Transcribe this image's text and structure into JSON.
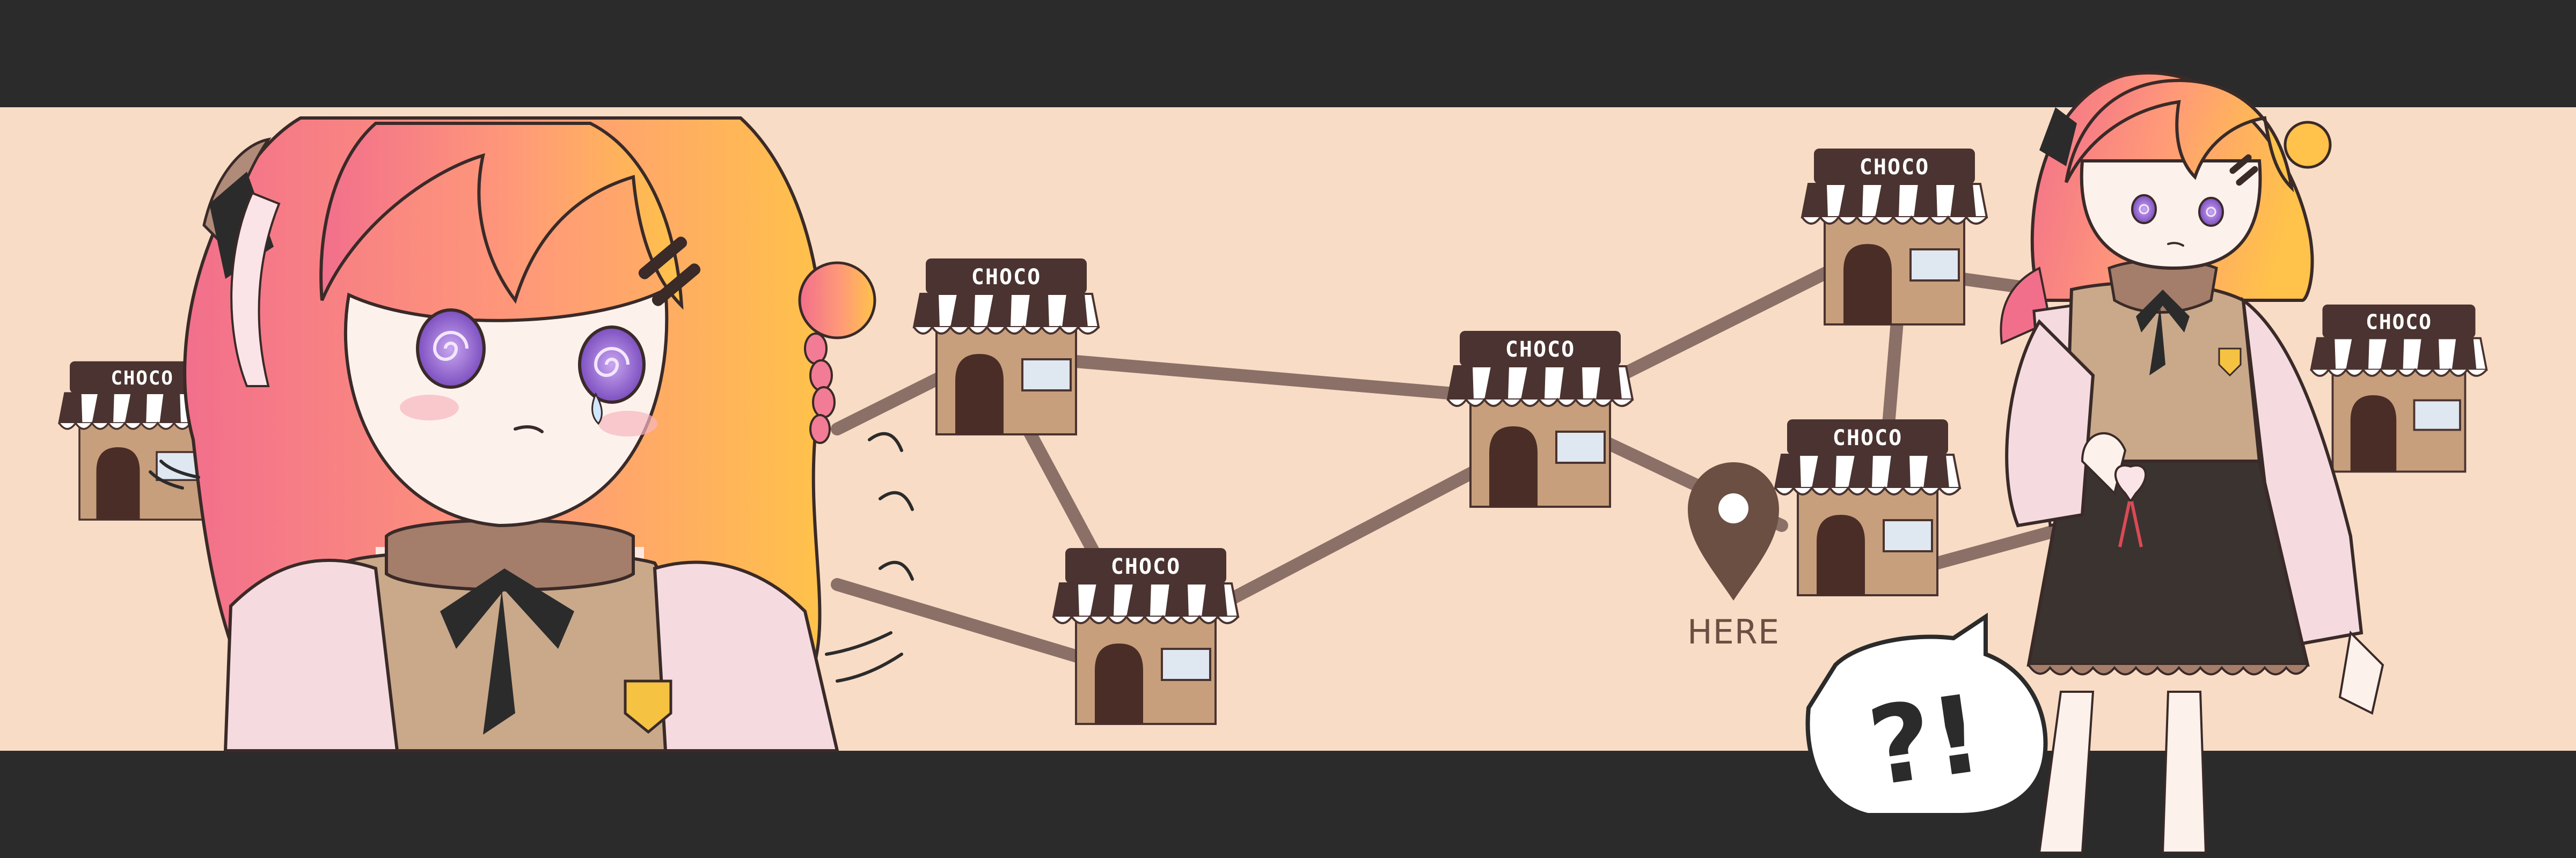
{
  "shop_label": "CHOCO",
  "location_label": "HERE",
  "speech_text": "?!",
  "shop_count": 7,
  "colors": {
    "letterbox": "#2b2b2b",
    "background": "#f8dcc5",
    "path": "#8b7068",
    "shop_wall": "#c79f7c",
    "shop_roof": "#4a3330",
    "awning_dark": "#4a3330",
    "awning_light": "#ffffff",
    "door": "#4a2d26",
    "window": "#dfe7f1",
    "pin": "#6b4f43",
    "hair_pink": "#f47c8d",
    "hair_orange": "#ffb84d",
    "eyes": "#8b5fc7",
    "vest": "#c9a98a",
    "cardigan": "#f5dbe0",
    "skirt": "#3a3330",
    "ribbon": "#2b2b2b",
    "badge": "#f5c242"
  },
  "icons": [
    "shop-icon",
    "location-pin-icon",
    "speech-bubble-icon",
    "swirl-eye-icon",
    "hair-clip-icon",
    "motion-lines-icon"
  ]
}
